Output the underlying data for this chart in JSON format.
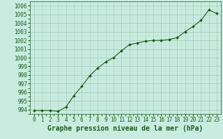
{
  "x": [
    0,
    1,
    2,
    3,
    4,
    5,
    6,
    7,
    8,
    9,
    10,
    11,
    12,
    13,
    14,
    15,
    16,
    17,
    18,
    19,
    20,
    21,
    22,
    23
  ],
  "y": [
    993.9,
    993.9,
    993.9,
    993.8,
    994.3,
    995.6,
    996.7,
    997.9,
    998.8,
    999.5,
    1000.0,
    1000.8,
    1001.5,
    1001.7,
    1001.9,
    1002.0,
    1002.0,
    1002.1,
    1002.3,
    1003.0,
    1003.6,
    1004.3,
    1005.5,
    1005.1
  ],
  "line_color": "#1a5c1a",
  "marker_color": "#1a5c1a",
  "bg_color": "#c8ede0",
  "grid_major_color": "#a0c8b8",
  "grid_minor_color": "#b8ddd0",
  "title": "Graphe pression niveau de la mer (hPa)",
  "ylim": [
    993.5,
    1006.5
  ],
  "xlim": [
    -0.5,
    23.5
  ],
  "yticks": [
    994,
    995,
    996,
    997,
    998,
    999,
    1000,
    1001,
    1002,
    1003,
    1004,
    1005,
    1006
  ],
  "xticks": [
    0,
    1,
    2,
    3,
    4,
    5,
    6,
    7,
    8,
    9,
    10,
    11,
    12,
    13,
    14,
    15,
    16,
    17,
    18,
    19,
    20,
    21,
    22,
    23
  ],
  "title_fontsize": 7,
  "tick_fontsize": 5.5,
  "title_color": "#1a5c1a",
  "tick_color": "#1a5c1a",
  "line_width": 0.8,
  "marker_size": 2.0
}
